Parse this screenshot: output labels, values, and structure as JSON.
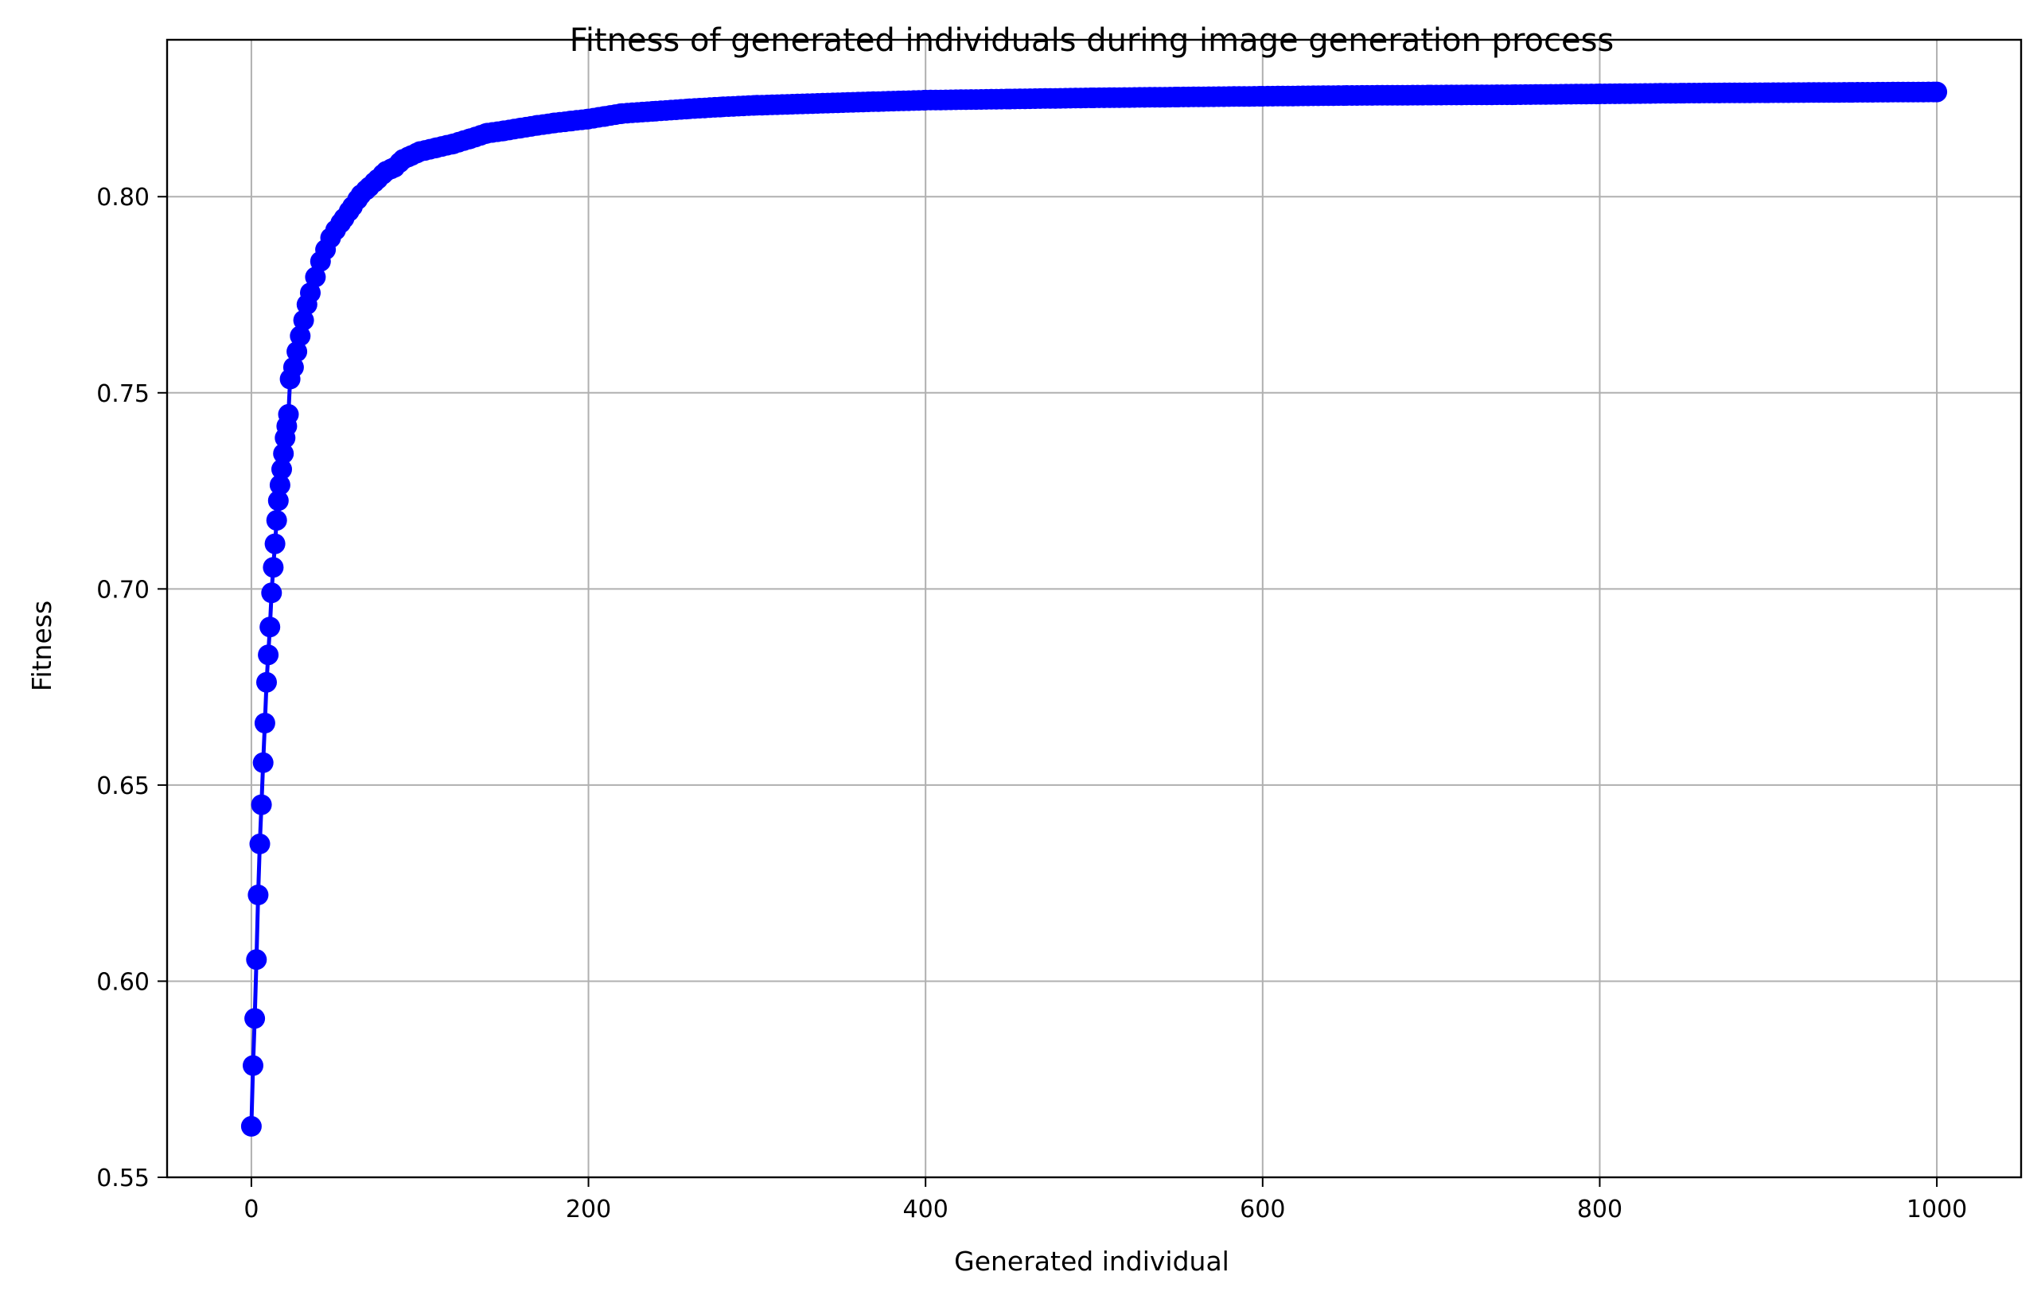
{
  "chart_data": {
    "type": "line",
    "title": "Fitness of generated individuals during image generation process",
    "xlabel": "Generated individual",
    "ylabel": "Fitness",
    "xlim": [
      -50,
      1050
    ],
    "ylim": [
      0.55,
      0.84
    ],
    "x_ticks": [
      0,
      200,
      400,
      600,
      800,
      1000
    ],
    "x_tick_labels": [
      "0",
      "200",
      "400",
      "600",
      "800",
      "1000"
    ],
    "y_ticks": [
      0.55,
      0.6,
      0.65,
      0.7,
      0.75,
      0.8
    ],
    "y_tick_labels": [
      "0.55",
      "0.60",
      "0.65",
      "0.70",
      "0.75",
      "0.80"
    ],
    "grid": true,
    "legend": "none",
    "series": [
      {
        "color": "#0000ff",
        "marker": "circle",
        "points": [
          [
            0,
            0.563
          ],
          [
            1,
            0.5785
          ],
          [
            2,
            0.5905
          ],
          [
            3,
            0.6055
          ],
          [
            4,
            0.622
          ],
          [
            5,
            0.635
          ],
          [
            6,
            0.645
          ],
          [
            7,
            0.6557
          ],
          [
            8,
            0.6658
          ],
          [
            9,
            0.6762
          ],
          [
            10,
            0.6832
          ],
          [
            11,
            0.6903
          ],
          [
            12,
            0.699
          ],
          [
            13,
            0.7055
          ],
          [
            14,
            0.7115
          ],
          [
            15,
            0.7175
          ],
          [
            16,
            0.7225
          ],
          [
            17,
            0.7265
          ],
          [
            18,
            0.7305
          ],
          [
            19,
            0.7345
          ],
          [
            20,
            0.7385
          ],
          [
            21,
            0.7415
          ],
          [
            22,
            0.7445
          ],
          [
            23,
            0.7535
          ],
          [
            25,
            0.7565
          ],
          [
            27,
            0.7605
          ],
          [
            29,
            0.7645
          ],
          [
            31,
            0.7685
          ],
          [
            33,
            0.7725
          ],
          [
            35,
            0.7755
          ],
          [
            38,
            0.7795
          ],
          [
            41,
            0.7835
          ],
          [
            44,
            0.7865
          ],
          [
            47,
            0.7895
          ],
          [
            50,
            0.7915
          ],
          [
            55,
            0.7945
          ],
          [
            60,
            0.7975
          ],
          [
            65,
            0.8005
          ],
          [
            70,
            0.8025
          ],
          [
            75,
            0.8045
          ],
          [
            80,
            0.8065
          ],
          [
            85,
            0.8075
          ],
          [
            90,
            0.8095
          ],
          [
            95,
            0.8105
          ],
          [
            100,
            0.8115
          ],
          [
            110,
            0.8125
          ],
          [
            120,
            0.8135
          ],
          [
            130,
            0.8148
          ],
          [
            140,
            0.8162
          ],
          [
            150,
            0.8168
          ],
          [
            160,
            0.8175
          ],
          [
            170,
            0.8182
          ],
          [
            180,
            0.8188
          ],
          [
            190,
            0.8193
          ],
          [
            200,
            0.8198
          ],
          [
            210,
            0.8205
          ],
          [
            220,
            0.8212
          ],
          [
            240,
            0.8218
          ],
          [
            260,
            0.8224
          ],
          [
            280,
            0.8229
          ],
          [
            300,
            0.8233
          ],
          [
            330,
            0.8237
          ],
          [
            360,
            0.8241
          ],
          [
            400,
            0.8246
          ],
          [
            450,
            0.8249
          ],
          [
            500,
            0.8252
          ],
          [
            550,
            0.8254
          ],
          [
            600,
            0.8256
          ],
          [
            650,
            0.8258
          ],
          [
            700,
            0.8259
          ],
          [
            750,
            0.826
          ],
          [
            800,
            0.8262
          ],
          [
            850,
            0.8264
          ],
          [
            900,
            0.8265
          ],
          [
            950,
            0.8266
          ],
          [
            1000,
            0.8267
          ]
        ]
      }
    ]
  }
}
